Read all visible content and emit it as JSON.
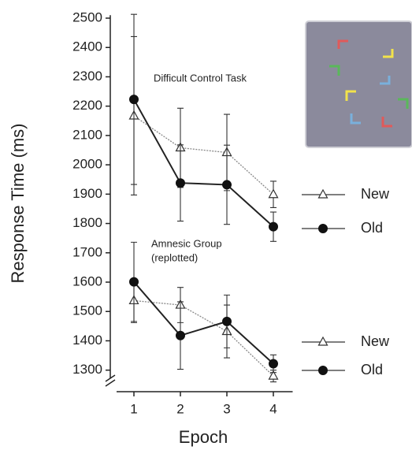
{
  "chart_data": {
    "type": "line",
    "ylabel": "Response Time (ms)",
    "xlabel": "Epoch",
    "x": [
      1,
      2,
      3,
      4
    ],
    "xlim": [
      0.5,
      4.5
    ],
    "xticks": [
      1,
      2,
      3,
      4
    ],
    "ylim": [
      1240,
      2510
    ],
    "yticks": [
      1300,
      1400,
      1500,
      1600,
      1700,
      1800,
      1900,
      2000,
      2100,
      2200,
      2300,
      2400,
      2500
    ],
    "groups": [
      {
        "label": [
          "Difficult Control Task"
        ],
        "series": [
          {
            "name": "New",
            "color": "#888888",
            "marker": "triangle-open",
            "dash": true,
            "values": [
              2167,
              2058,
              2042,
              1899
            ],
            "errors": [
              270,
              135,
              130,
              45
            ]
          },
          {
            "name": "Old",
            "color": "#222222",
            "marker": "circle-filled",
            "dash": false,
            "values": [
              2223,
              1938,
              1932,
              1789
            ],
            "errors": [
              290,
              130,
              135,
              50
            ]
          }
        ]
      },
      {
        "label": [
          "Amnesic Group",
          "(replotted)"
        ],
        "series": [
          {
            "name": "New",
            "color": "#888888",
            "marker": "triangle-open",
            "dash": true,
            "values": [
              1537,
              1522,
              1432,
              1280
            ],
            "errors": [
              75,
              60,
              90,
              20
            ]
          },
          {
            "name": "Old",
            "color": "#222222",
            "marker": "circle-filled",
            "dash": false,
            "values": [
              1601,
              1418,
              1466,
              1322
            ],
            "errors": [
              135,
              115,
              90,
              30
            ]
          }
        ]
      }
    ]
  }
}
